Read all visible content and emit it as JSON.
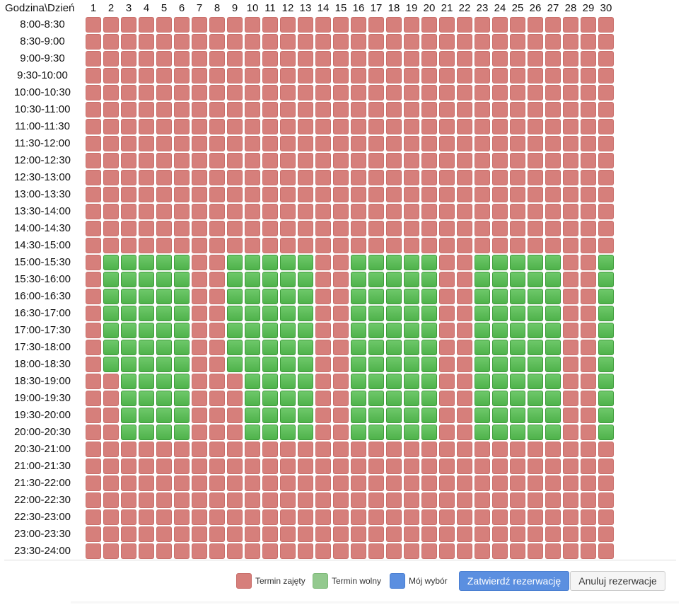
{
  "corner_label": "Godzina\\Dzień",
  "days": [
    "1",
    "2",
    "3",
    "4",
    "5",
    "6",
    "7",
    "8",
    "9",
    "10",
    "11",
    "12",
    "13",
    "14",
    "15",
    "16",
    "17",
    "18",
    "19",
    "20",
    "21",
    "22",
    "23",
    "24",
    "25",
    "26",
    "27",
    "28",
    "29",
    "30"
  ],
  "time_slots": [
    "8:00-8:30",
    "8:30-9:00",
    "9:00-9:30",
    "9:30-10:00",
    "10:00-10:30",
    "10:30-11:00",
    "11:00-11:30",
    "11:30-12:00",
    "12:00-12:30",
    "12:30-13:00",
    "13:00-13:30",
    "13:30-14:00",
    "14:00-14:30",
    "14:30-15:00",
    "15:00-15:30",
    "15:30-16:00",
    "16:00-16:30",
    "16:30-17:00",
    "17:00-17:30",
    "17:30-18:00",
    "18:00-18:30",
    "18:30-19:00",
    "19:00-19:30",
    "19:30-20:00",
    "20:00-20:30",
    "20:30-21:00",
    "21:00-21:30",
    "21:30-22:00",
    "22:00-22:30",
    "22:30-23:00",
    "23:00-23:30",
    "23:30-24:00"
  ],
  "free_slots": [
    {
      "day": 2,
      "from": "15:00-15:30",
      "to": "18:00-18:30"
    },
    {
      "day": 3,
      "from": "15:00-15:30",
      "to": "20:00-20:30"
    },
    {
      "day": 4,
      "from": "15:00-15:30",
      "to": "20:00-20:30"
    },
    {
      "day": 5,
      "from": "15:00-15:30",
      "to": "20:00-20:30"
    },
    {
      "day": 6,
      "from": "15:00-15:30",
      "to": "20:00-20:30"
    },
    {
      "day": 9,
      "from": "15:00-15:30",
      "to": "18:00-18:30"
    },
    {
      "day": 10,
      "from": "15:00-15:30",
      "to": "20:00-20:30"
    },
    {
      "day": 11,
      "from": "15:00-15:30",
      "to": "20:00-20:30"
    },
    {
      "day": 12,
      "from": "15:00-15:30",
      "to": "20:00-20:30"
    },
    {
      "day": 13,
      "from": "15:00-15:30",
      "to": "20:00-20:30"
    },
    {
      "day": 16,
      "from": "15:00-15:30",
      "to": "20:00-20:30"
    },
    {
      "day": 17,
      "from": "15:00-15:30",
      "to": "20:00-20:30"
    },
    {
      "day": 18,
      "from": "15:00-15:30",
      "to": "20:00-20:30"
    },
    {
      "day": 19,
      "from": "15:00-15:30",
      "to": "20:00-20:30"
    },
    {
      "day": 20,
      "from": "15:00-15:30",
      "to": "20:00-20:30"
    },
    {
      "day": 23,
      "from": "15:00-15:30",
      "to": "20:00-20:30"
    },
    {
      "day": 24,
      "from": "15:00-15:30",
      "to": "20:00-20:30"
    },
    {
      "day": 25,
      "from": "15:00-15:30",
      "to": "20:00-20:30"
    },
    {
      "day": 26,
      "from": "15:00-15:30",
      "to": "20:00-20:30"
    },
    {
      "day": 27,
      "from": "15:00-15:30",
      "to": "20:00-20:30"
    },
    {
      "day": 30,
      "from": "15:00-15:30",
      "to": "20:00-20:30"
    }
  ],
  "colors": {
    "busy": "#d67f7b",
    "free": "#5cbd58",
    "mine": "#5b8fe0"
  },
  "legend": {
    "busy_label": "Termin zajęty",
    "free_label": "Termin wolny",
    "mine_label": "Mój wybór"
  },
  "buttons": {
    "confirm_label": "Zatwierdź rezerwację",
    "cancel_label": "Anuluj rezerwacje"
  }
}
